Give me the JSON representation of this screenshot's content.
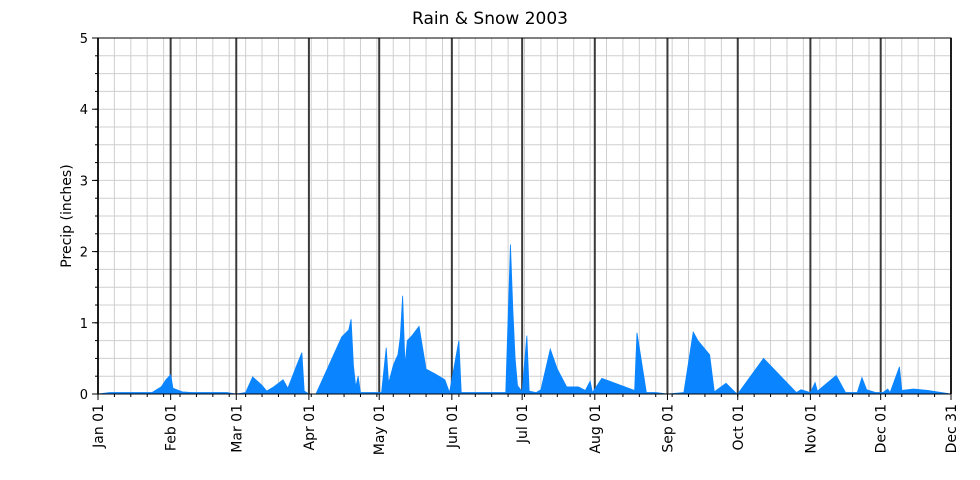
{
  "chart_data": {
    "type": "area",
    "title": "Rain & Snow 2003",
    "xlabel": "",
    "ylabel": "Precip (inches)",
    "xlim": [
      "2003-01-01",
      "2003-12-31"
    ],
    "ylim": [
      0,
      5
    ],
    "y_ticks": [
      "0",
      "1",
      "2",
      "3",
      "4",
      "5"
    ],
    "y_minor_step": 0.25,
    "x_ticks": [
      {
        "date": "2003-01-01",
        "label": "Jan 01"
      },
      {
        "date": "2003-02-01",
        "label": "Feb 01"
      },
      {
        "date": "2003-03-01",
        "label": "Mar 01"
      },
      {
        "date": "2003-04-01",
        "label": "Apr 01"
      },
      {
        "date": "2003-05-01",
        "label": "May 01"
      },
      {
        "date": "2003-06-01",
        "label": "Jun 01"
      },
      {
        "date": "2003-07-01",
        "label": "Jul 01"
      },
      {
        "date": "2003-08-01",
        "label": "Aug 01"
      },
      {
        "date": "2003-09-01",
        "label": "Sep 01"
      },
      {
        "date": "2003-10-01",
        "label": "Oct 01"
      },
      {
        "date": "2003-11-01",
        "label": "Nov 01"
      },
      {
        "date": "2003-12-01",
        "label": "Dec 01"
      },
      {
        "date": "2003-12-31",
        "label": "Dec 31"
      }
    ],
    "grid": true,
    "series": [
      {
        "color": "#0a84ff",
        "points": [
          [
            "2003-01-01",
            0
          ],
          [
            "2003-01-06",
            0.02
          ],
          [
            "2003-01-12",
            0.02
          ],
          [
            "2003-01-18",
            0.02
          ],
          [
            "2003-01-24",
            0.02
          ],
          [
            "2003-01-28",
            0.1
          ],
          [
            "2003-01-30",
            0.2
          ],
          [
            "2003-02-01",
            0.27
          ],
          [
            "2003-02-02",
            0.08
          ],
          [
            "2003-02-06",
            0.03
          ],
          [
            "2003-02-10",
            0.02
          ],
          [
            "2003-02-15",
            0.02
          ],
          [
            "2003-02-20",
            0.02
          ],
          [
            "2003-02-25",
            0.02
          ],
          [
            "2003-03-01",
            0
          ],
          [
            "2003-03-05",
            0.02
          ],
          [
            "2003-03-08",
            0.24
          ],
          [
            "2003-03-10",
            0.18
          ],
          [
            "2003-03-12",
            0.12
          ],
          [
            "2003-03-14",
            0.04
          ],
          [
            "2003-03-17",
            0.1
          ],
          [
            "2003-03-21",
            0.2
          ],
          [
            "2003-03-23",
            0.08
          ],
          [
            "2003-03-27",
            0.42
          ],
          [
            "2003-03-29",
            0.58
          ],
          [
            "2003-03-30",
            0.04
          ],
          [
            "2003-04-01",
            0
          ],
          [
            "2003-04-04",
            0
          ],
          [
            "2003-04-15",
            0.8
          ],
          [
            "2003-04-18",
            0.9
          ],
          [
            "2003-04-19",
            1.05
          ],
          [
            "2003-04-20",
            0.4
          ],
          [
            "2003-04-21",
            0.1
          ],
          [
            "2003-04-22",
            0.25
          ],
          [
            "2003-04-23",
            0.02
          ],
          [
            "2003-04-26",
            0.02
          ],
          [
            "2003-04-30",
            0.02
          ],
          [
            "2003-05-02",
            0.02
          ],
          [
            "2003-05-04",
            0.65
          ],
          [
            "2003-05-05",
            0.15
          ],
          [
            "2003-05-07",
            0.4
          ],
          [
            "2003-05-08",
            0.48
          ],
          [
            "2003-05-09",
            0.55
          ],
          [
            "2003-05-10",
            0.8
          ],
          [
            "2003-05-11",
            1.38
          ],
          [
            "2003-05-12",
            0.4
          ],
          [
            "2003-05-13",
            0.75
          ],
          [
            "2003-05-15",
            0.82
          ],
          [
            "2003-05-18",
            0.95
          ],
          [
            "2003-05-21",
            0.35
          ],
          [
            "2003-05-25",
            0.28
          ],
          [
            "2003-05-29",
            0.2
          ],
          [
            "2003-05-31",
            0.02
          ],
          [
            "2003-06-04",
            0.75
          ],
          [
            "2003-06-05",
            0.02
          ],
          [
            "2003-06-10",
            0.02
          ],
          [
            "2003-06-17",
            0.02
          ],
          [
            "2003-06-24",
            0.02
          ],
          [
            "2003-06-26",
            2.1
          ],
          [
            "2003-06-27",
            1.2
          ],
          [
            "2003-06-28",
            0.5
          ],
          [
            "2003-06-29",
            0.12
          ],
          [
            "2003-07-01",
            0.03
          ],
          [
            "2003-07-03",
            0.82
          ],
          [
            "2003-07-04",
            0.04
          ],
          [
            "2003-07-07",
            0.02
          ],
          [
            "2003-07-09",
            0.06
          ],
          [
            "2003-07-13",
            0.63
          ],
          [
            "2003-07-16",
            0.35
          ],
          [
            "2003-07-20",
            0.1
          ],
          [
            "2003-07-25",
            0.1
          ],
          [
            "2003-07-28",
            0.05
          ],
          [
            "2003-07-30",
            0.18
          ],
          [
            "2003-07-31",
            0.02
          ],
          [
            "2003-08-04",
            0.22
          ],
          [
            "2003-08-18",
            0.05
          ],
          [
            "2003-08-19",
            0.86
          ],
          [
            "2003-08-23",
            0.02
          ],
          [
            "2003-08-27",
            0.02
          ],
          [
            "2003-09-01",
            0
          ],
          [
            "2003-09-08",
            0.02
          ],
          [
            "2003-09-12",
            0.87
          ],
          [
            "2003-09-14",
            0.75
          ],
          [
            "2003-09-19",
            0.55
          ],
          [
            "2003-09-21",
            0.03
          ],
          [
            "2003-09-26",
            0.15
          ],
          [
            "2003-09-30",
            0.02
          ],
          [
            "2003-10-01",
            0
          ],
          [
            "2003-10-12",
            0.5
          ],
          [
            "2003-10-26",
            0.02
          ],
          [
            "2003-10-28",
            0.06
          ],
          [
            "2003-11-01",
            0.02
          ],
          [
            "2003-11-03",
            0.16
          ],
          [
            "2003-11-04",
            0.04
          ],
          [
            "2003-11-12",
            0.26
          ],
          [
            "2003-11-16",
            0.02
          ],
          [
            "2003-11-21",
            0.02
          ],
          [
            "2003-11-23",
            0.23
          ],
          [
            "2003-11-25",
            0.06
          ],
          [
            "2003-11-29",
            0.02
          ],
          [
            "2003-12-02",
            0.02
          ],
          [
            "2003-12-04",
            0.07
          ],
          [
            "2003-12-05",
            0.02
          ],
          [
            "2003-12-09",
            0.38
          ],
          [
            "2003-12-10",
            0.05
          ],
          [
            "2003-12-15",
            0.07
          ],
          [
            "2003-12-21",
            0.05
          ],
          [
            "2003-12-31",
            0
          ]
        ]
      }
    ]
  }
}
